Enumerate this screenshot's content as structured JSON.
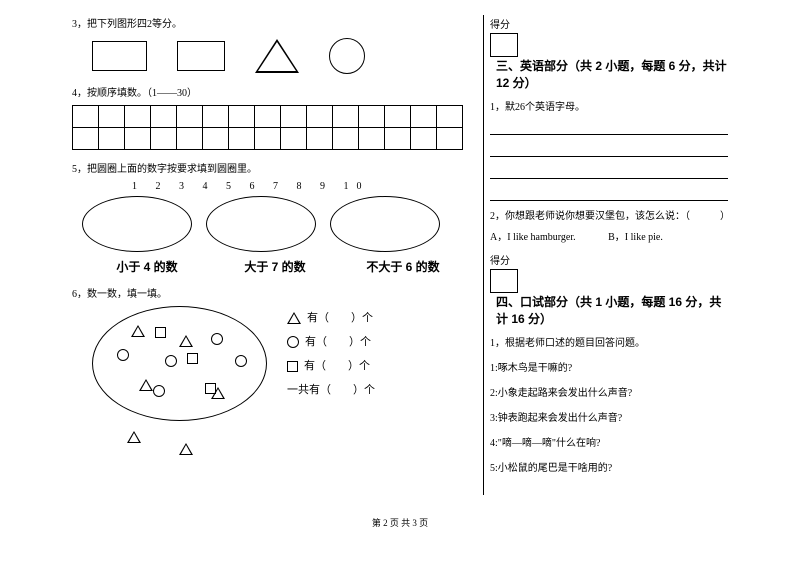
{
  "left": {
    "q3": "3，把下列图形四2等分。",
    "q4": "4，按顺序填数。（1——30）",
    "q5": "5，把圆圈上面的数字按要求填到圆圈里。",
    "numline": "1 2 3 4 5 6 7 8 9 10",
    "el1": "小于 4 的数",
    "el2": "大于 7 的数",
    "el3": "不大于 6 的数",
    "q6": "6，数一数，填一填。",
    "c1": "有（　　）个",
    "c2": "有（　　）个",
    "c3": "有（　　）个",
    "c4": "一共有（　　）个"
  },
  "right": {
    "score": "得分",
    "sec3": "三、英语部分（共 2 小题，每题 6 分，共计 12 分）",
    "r1": "1，默26个英语字母。",
    "r2": "2，你想跟老师说你想要汉堡包，该怎么说：（　　　）",
    "r2a": "A，I like hamburger.",
    "r2b": "B，I like pie.",
    "sec4": "四、口试部分（共 1 小题，每题 16 分，共计 16 分）",
    "o1": "1，根据老师口述的题目回答问题。",
    "oq1": "1:啄木鸟是干嘛的?",
    "oq2": "2:小象走起路来会发出什么声音?",
    "oq3": "3:钟表跑起来会发出什么声音?",
    "oq4": "4:\"嘀—嘀—嘀\"什么在响?",
    "oq5": "5:小松鼠的尾巴是干啥用的?"
  },
  "footer": "第 2 页 共 3 页",
  "grid": {
    "rows": 2,
    "cols": 15
  }
}
